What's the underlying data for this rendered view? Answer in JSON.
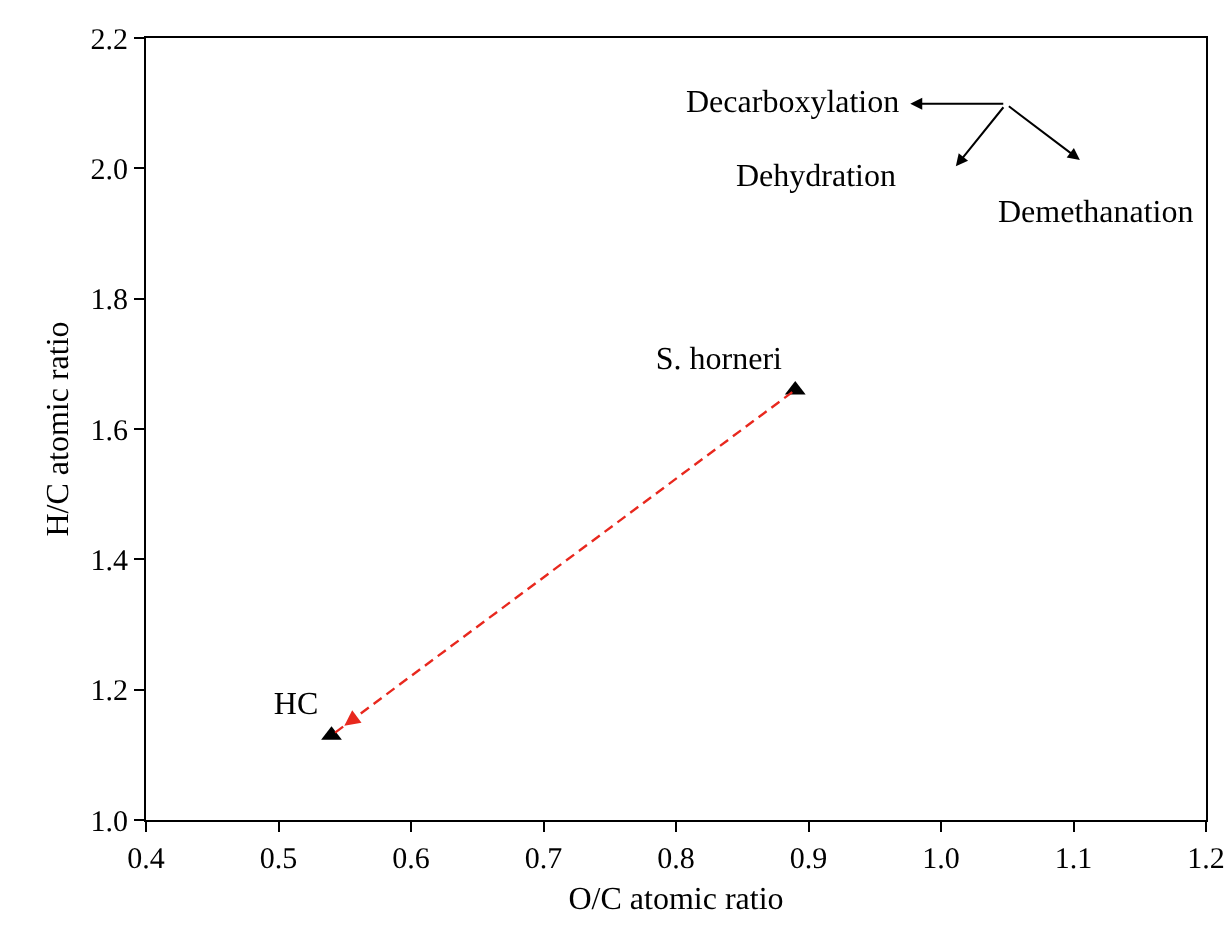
{
  "chart_data": {
    "type": "scatter",
    "xlabel": "O/C atomic ratio",
    "ylabel": "H/C atomic ratio",
    "series": [
      {
        "name": "S. horneri",
        "color": "#000000",
        "x": [
          0.89
        ],
        "values": [
          1.66
        ]
      },
      {
        "name": "HC",
        "color": "#000000",
        "x": [
          0.54
        ],
        "values": [
          1.13
        ]
      }
    ],
    "xlim": [
      0.4,
      1.2
    ],
    "xticks": [
      0.4,
      0.5,
      0.6,
      0.7,
      0.8,
      0.9,
      {
        "value": 1,
        "label": "1.0"
      },
      1.1,
      1.2
    ],
    "ylim": [
      1.0,
      2.2
    ],
    "yticks": [
      {
        "value": 1,
        "label": "1.0"
      },
      1.2,
      1.4,
      1.6,
      1.8,
      {
        "value": 2,
        "label": "2.0"
      },
      2.2
    ],
    "annotations": [
      "Decarboxylation",
      "Dehydration",
      "Demethanation"
    ],
    "grid": false,
    "legend": false,
    "marker": "triangle"
  }
}
